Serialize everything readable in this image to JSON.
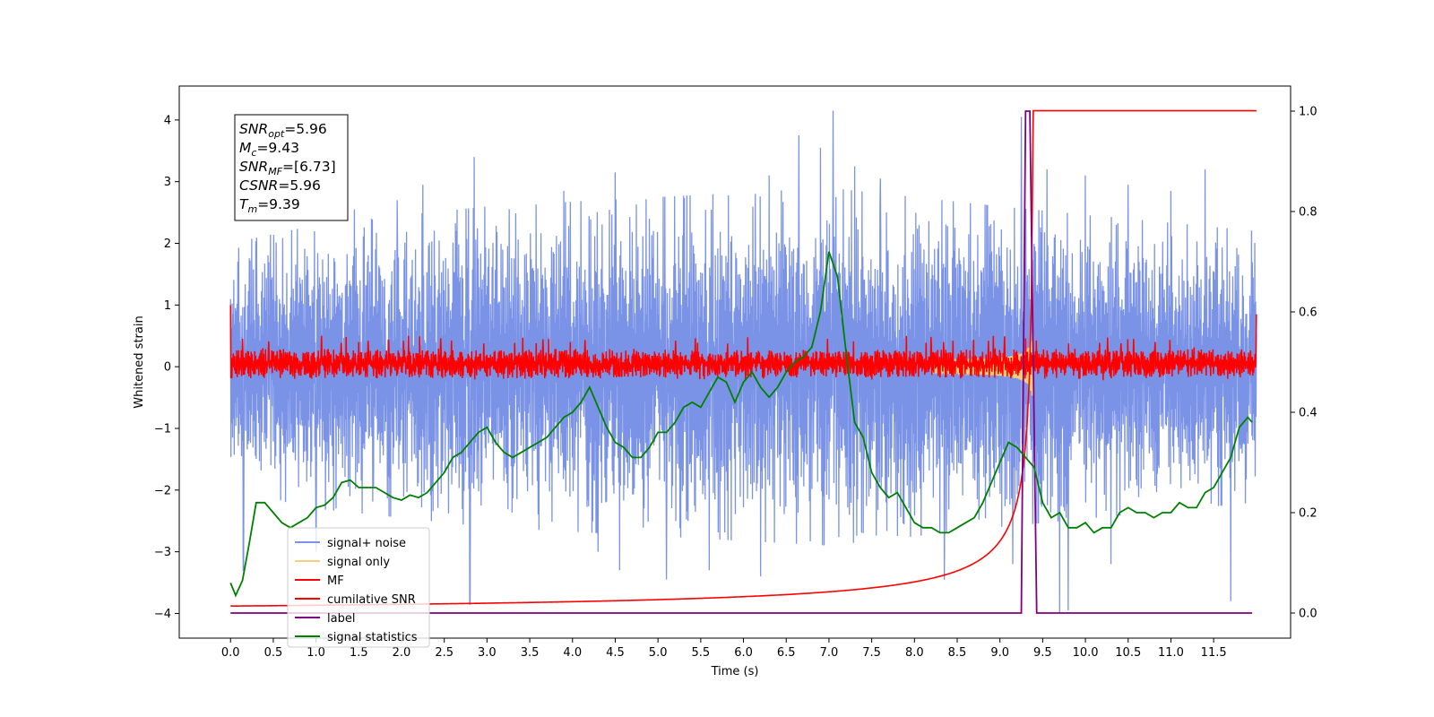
{
  "chart_data": {
    "type": "line",
    "xlabel": "Time (s)",
    "ylabel": "Whitened strain",
    "xlim": [
      -0.6,
      12.4
    ],
    "ylim": [
      -4.4,
      4.55
    ],
    "ylim_right": [
      -0.05,
      1.05
    ],
    "x_ticks": [
      0.0,
      0.5,
      1.0,
      1.5,
      2.0,
      2.5,
      3.0,
      3.5,
      4.0,
      4.5,
      5.0,
      5.5,
      6.0,
      6.5,
      7.0,
      7.5,
      8.0,
      8.5,
      9.0,
      9.5,
      10.0,
      10.5,
      11.0,
      11.5
    ],
    "x_tick_labels": [
      "0.0",
      "0.5",
      "1.0",
      "1.5",
      "2.0",
      "2.5",
      "3.0",
      "3.5",
      "4.0",
      "4.5",
      "5.0",
      "5.5",
      "6.0",
      "6.5",
      "7.0",
      "7.5",
      "8.0",
      "8.5",
      "9.0",
      "9.5",
      "10.0",
      "10.5",
      "11.0",
      "11.5"
    ],
    "y_ticks": [
      -4,
      -3,
      -2,
      -1,
      0,
      1,
      2,
      3,
      4
    ],
    "y_tick_labels": [
      "−4",
      "−3",
      "−2",
      "−1",
      "0",
      "1",
      "2",
      "3",
      "4"
    ],
    "y_right_ticks": [
      0.0,
      0.2,
      0.4,
      0.6,
      0.8,
      1.0
    ],
    "y_right_tick_labels": [
      "0.0",
      "0.2",
      "0.4",
      "0.6",
      "0.8",
      "1.0"
    ],
    "grid": false,
    "legend_position": "lower-left",
    "stats": {
      "snr_opt": {
        "base": "SNR",
        "sub": "opt",
        "value": "=5.96"
      },
      "mc": {
        "base": "M",
        "sub": "c",
        "value": "=9.43"
      },
      "snr_mf": {
        "base": "SNR",
        "sub": "MF",
        "value": "=[6.73]"
      },
      "csnr": {
        "base": "CSNR",
        "sub": "",
        "value": "=5.96"
      },
      "tm": {
        "base": "T",
        "sub": "m",
        "value": "=9.39"
      }
    },
    "series": [
      {
        "name": "signal+ noise",
        "color": "#7b93e6",
        "axis": "left",
        "x_range": [
          0.0,
          12.0
        ],
        "band": [
          -1.5,
          1.5
        ],
        "envelope": [
          [
            0.0,
            2.0
          ],
          [
            1.0,
            2.3
          ],
          [
            3.0,
            2.6
          ],
          [
            7.0,
            2.9
          ],
          [
            9.0,
            2.6
          ],
          [
            12.0,
            2.2
          ]
        ],
        "upper_spikes": [
          [
            1.45,
            2.55
          ],
          [
            1.95,
            2.7
          ],
          [
            2.25,
            2.95
          ],
          [
            2.85,
            3.4
          ],
          [
            3.9,
            2.85
          ],
          [
            4.5,
            3.15
          ],
          [
            5.6,
            3.3
          ],
          [
            6.3,
            3.1
          ],
          [
            6.65,
            3.75
          ],
          [
            6.9,
            3.55
          ],
          [
            7.05,
            4.15
          ],
          [
            7.3,
            3.25
          ],
          [
            7.6,
            3.05
          ],
          [
            9.25,
            4.05
          ],
          [
            9.55,
            3.2
          ],
          [
            10.0,
            3.1
          ],
          [
            10.5,
            2.95
          ],
          [
            11.0,
            2.85
          ],
          [
            11.4,
            3.2
          ]
        ],
        "lower_spikes": [
          [
            0.15,
            -3.3
          ],
          [
            1.0,
            -3.0
          ],
          [
            2.8,
            -3.85
          ],
          [
            4.3,
            -3.0
          ],
          [
            4.55,
            -3.3
          ],
          [
            5.1,
            -3.45
          ],
          [
            5.6,
            -3.3
          ],
          [
            6.2,
            -3.4
          ],
          [
            8.35,
            -3.45
          ],
          [
            9.15,
            -3.2
          ],
          [
            9.7,
            -4.0
          ],
          [
            9.8,
            -3.95
          ],
          [
            10.3,
            -3.2
          ],
          [
            11.7,
            -3.8
          ]
        ]
      },
      {
        "name": "signal only",
        "color": "#f5cf7b",
        "axis": "left",
        "chirp": {
          "start": 8.2,
          "end": 9.39,
          "peak_amplitude": 0.65
        }
      },
      {
        "name": "MF",
        "color": "#ff0000",
        "axis": "left",
        "x_range": [
          0.0,
          12.0
        ],
        "band": [
          -0.2,
          0.3
        ],
        "spike_max": 0.5,
        "start_value": 1.0,
        "end_value": 0.85
      },
      {
        "name": "cumilative SNR",
        "color": "#ff0000",
        "axis": "left",
        "curve": {
          "t_start": 0.0,
          "t_end": 9.39,
          "y_start": -3.88,
          "y_end": 4.15,
          "plateau_y": 4.15,
          "plateau_end": 12.0
        }
      },
      {
        "name": "label",
        "color": "#800080",
        "axis": "right",
        "x": [
          0.0,
          9.25,
          9.3,
          9.35,
          9.43,
          11.95
        ],
        "y": [
          0.0,
          0.0,
          1.0,
          1.0,
          0.0,
          0.0
        ]
      },
      {
        "name": "signal statistics",
        "color": "#008000",
        "axis": "right",
        "x": [
          0.0,
          0.06,
          0.14,
          0.22,
          0.3,
          0.4,
          0.5,
          0.6,
          0.7,
          0.8,
          0.9,
          1.0,
          1.1,
          1.2,
          1.3,
          1.4,
          1.5,
          1.6,
          1.7,
          1.8,
          1.9,
          2.0,
          2.1,
          2.2,
          2.3,
          2.4,
          2.5,
          2.6,
          2.7,
          2.8,
          2.9,
          3.0,
          3.1,
          3.2,
          3.3,
          3.4,
          3.5,
          3.6,
          3.7,
          3.8,
          3.9,
          4.0,
          4.1,
          4.2,
          4.3,
          4.4,
          4.5,
          4.6,
          4.7,
          4.8,
          4.9,
          5.0,
          5.1,
          5.2,
          5.3,
          5.4,
          5.5,
          5.6,
          5.7,
          5.8,
          5.9,
          6.0,
          6.1,
          6.2,
          6.3,
          6.4,
          6.5,
          6.6,
          6.7,
          6.8,
          6.9,
          7.0,
          7.1,
          7.2,
          7.3,
          7.4,
          7.5,
          7.6,
          7.7,
          7.8,
          7.9,
          8.0,
          8.1,
          8.2,
          8.3,
          8.4,
          8.5,
          8.6,
          8.7,
          8.8,
          8.9,
          9.0,
          9.1,
          9.2,
          9.3,
          9.4,
          9.5,
          9.6,
          9.7,
          9.8,
          9.9,
          10.0,
          10.1,
          10.2,
          10.3,
          10.4,
          10.5,
          10.6,
          10.7,
          10.8,
          10.9,
          11.0,
          11.1,
          11.2,
          11.3,
          11.4,
          11.5,
          11.6,
          11.7,
          11.8,
          11.9,
          11.95
        ],
        "y": [
          0.06,
          0.035,
          0.065,
          0.14,
          0.22,
          0.22,
          0.2,
          0.18,
          0.17,
          0.18,
          0.19,
          0.21,
          0.215,
          0.23,
          0.26,
          0.265,
          0.25,
          0.25,
          0.25,
          0.24,
          0.23,
          0.225,
          0.235,
          0.23,
          0.24,
          0.26,
          0.28,
          0.31,
          0.32,
          0.34,
          0.36,
          0.37,
          0.34,
          0.32,
          0.31,
          0.32,
          0.33,
          0.34,
          0.35,
          0.37,
          0.39,
          0.4,
          0.42,
          0.45,
          0.41,
          0.37,
          0.34,
          0.33,
          0.31,
          0.31,
          0.33,
          0.36,
          0.36,
          0.38,
          0.41,
          0.42,
          0.41,
          0.44,
          0.47,
          0.46,
          0.42,
          0.46,
          0.48,
          0.45,
          0.43,
          0.45,
          0.48,
          0.5,
          0.51,
          0.53,
          0.6,
          0.72,
          0.67,
          0.52,
          0.38,
          0.35,
          0.28,
          0.25,
          0.23,
          0.24,
          0.21,
          0.18,
          0.17,
          0.17,
          0.16,
          0.16,
          0.17,
          0.18,
          0.19,
          0.22,
          0.26,
          0.3,
          0.34,
          0.33,
          0.31,
          0.29,
          0.22,
          0.19,
          0.2,
          0.17,
          0.17,
          0.18,
          0.16,
          0.17,
          0.17,
          0.2,
          0.21,
          0.2,
          0.2,
          0.19,
          0.2,
          0.2,
          0.22,
          0.21,
          0.21,
          0.24,
          0.25,
          0.28,
          0.31,
          0.37,
          0.39,
          0.38
        ]
      }
    ]
  }
}
